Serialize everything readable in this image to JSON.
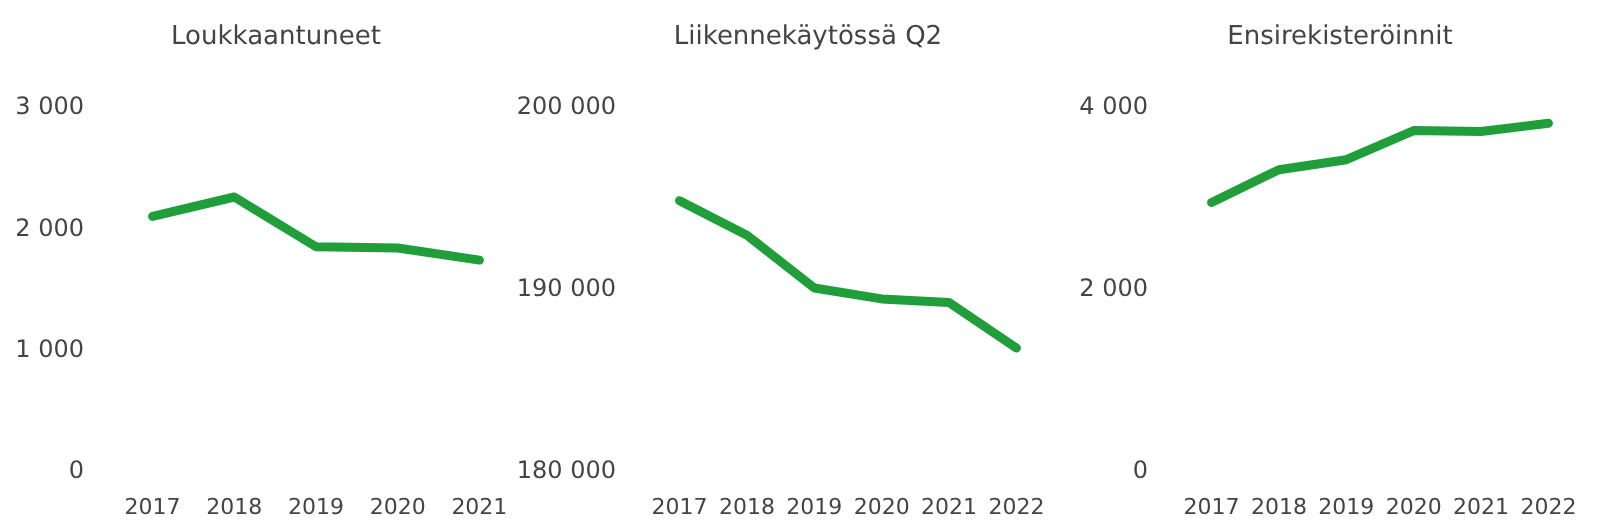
{
  "chart_data": [
    {
      "type": "line",
      "title": "Loukkaantuneet",
      "categories": [
        "2017",
        "2018",
        "2019",
        "2020",
        "2021"
      ],
      "series": [
        {
          "color": "#1f9e3a",
          "values": [
            2090,
            2250,
            1840,
            1830,
            1730
          ]
        }
      ],
      "ylim": [
        0,
        3000
      ],
      "yticks": [
        0,
        {
          "value": 1000,
          "label": "1 000"
        },
        {
          "value": 2000,
          "label": "2 000"
        },
        {
          "value": 3000,
          "label": "3 000"
        }
      ]
    },
    {
      "type": "line",
      "title": "Liikennekäytössä Q2",
      "categories": [
        "2017",
        "2018",
        "2019",
        "2020",
        "2021",
        "2022"
      ],
      "series": [
        {
          "color": "#1f9e3a",
          "values": [
            194800,
            192900,
            190000,
            189400,
            189200,
            186700
          ]
        }
      ],
      "ylim": [
        180000,
        200000
      ],
      "yticks": [
        {
          "value": 180000,
          "label": "180 000"
        },
        {
          "value": 190000,
          "label": "190 000"
        },
        {
          "value": 200000,
          "label": "200 000"
        }
      ]
    },
    {
      "type": "line",
      "title": "Ensirekisteröinnit",
      "categories": [
        "2017",
        "2018",
        "2019",
        "2020",
        "2021",
        "2022"
      ],
      "series": [
        {
          "color": "#1f9e3a",
          "values": [
            2940,
            3300,
            3410,
            3730,
            3720,
            3810
          ]
        }
      ],
      "ylim": [
        0,
        4000
      ],
      "yticks": [
        0,
        {
          "value": 2000,
          "label": "2 000"
        },
        {
          "value": 4000,
          "label": "4 000"
        }
      ]
    }
  ]
}
